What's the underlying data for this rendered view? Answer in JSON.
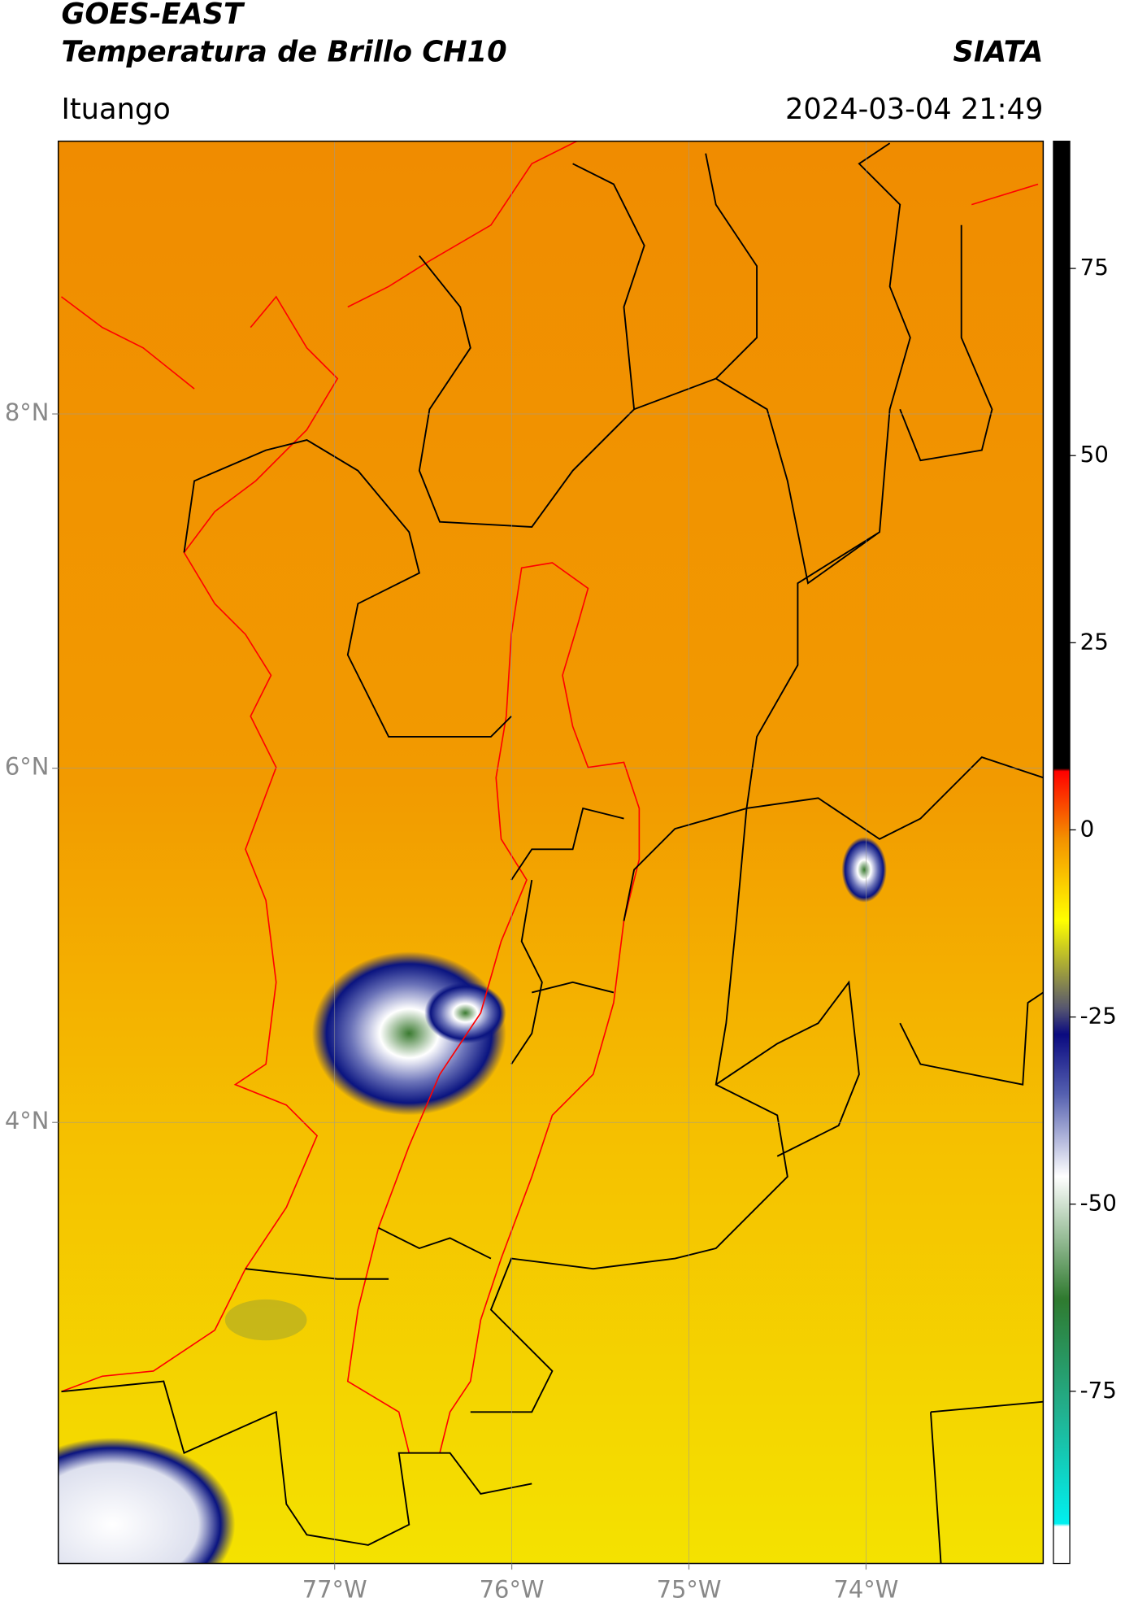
{
  "chart_data": {
    "type": "map",
    "title": "GOES-EAST",
    "subtitle": "Temperatura de Brillo CH10",
    "source": "SIATA",
    "region": "Ituango",
    "datetime": "2024-03-04 21:49",
    "xlim": [
      -78.56,
      -73.0
    ],
    "ylim": [
      1.51,
      9.54
    ],
    "xticks": [
      {
        "value": -77,
        "label": "77°W"
      },
      {
        "value": -76,
        "label": "76°W"
      },
      {
        "value": -75,
        "label": "75°W"
      },
      {
        "value": -74,
        "label": "74°W"
      }
    ],
    "yticks": [
      {
        "value": 8,
        "label": "8°N"
      },
      {
        "value": 6,
        "label": "6°N"
      },
      {
        "value": 4,
        "label": "4°N"
      }
    ],
    "grid": true,
    "colorbar": {
      "lim": [
        -98,
        92
      ],
      "ticks": [
        75,
        50,
        25,
        0,
        -25,
        -50,
        -75
      ]
    }
  }
}
